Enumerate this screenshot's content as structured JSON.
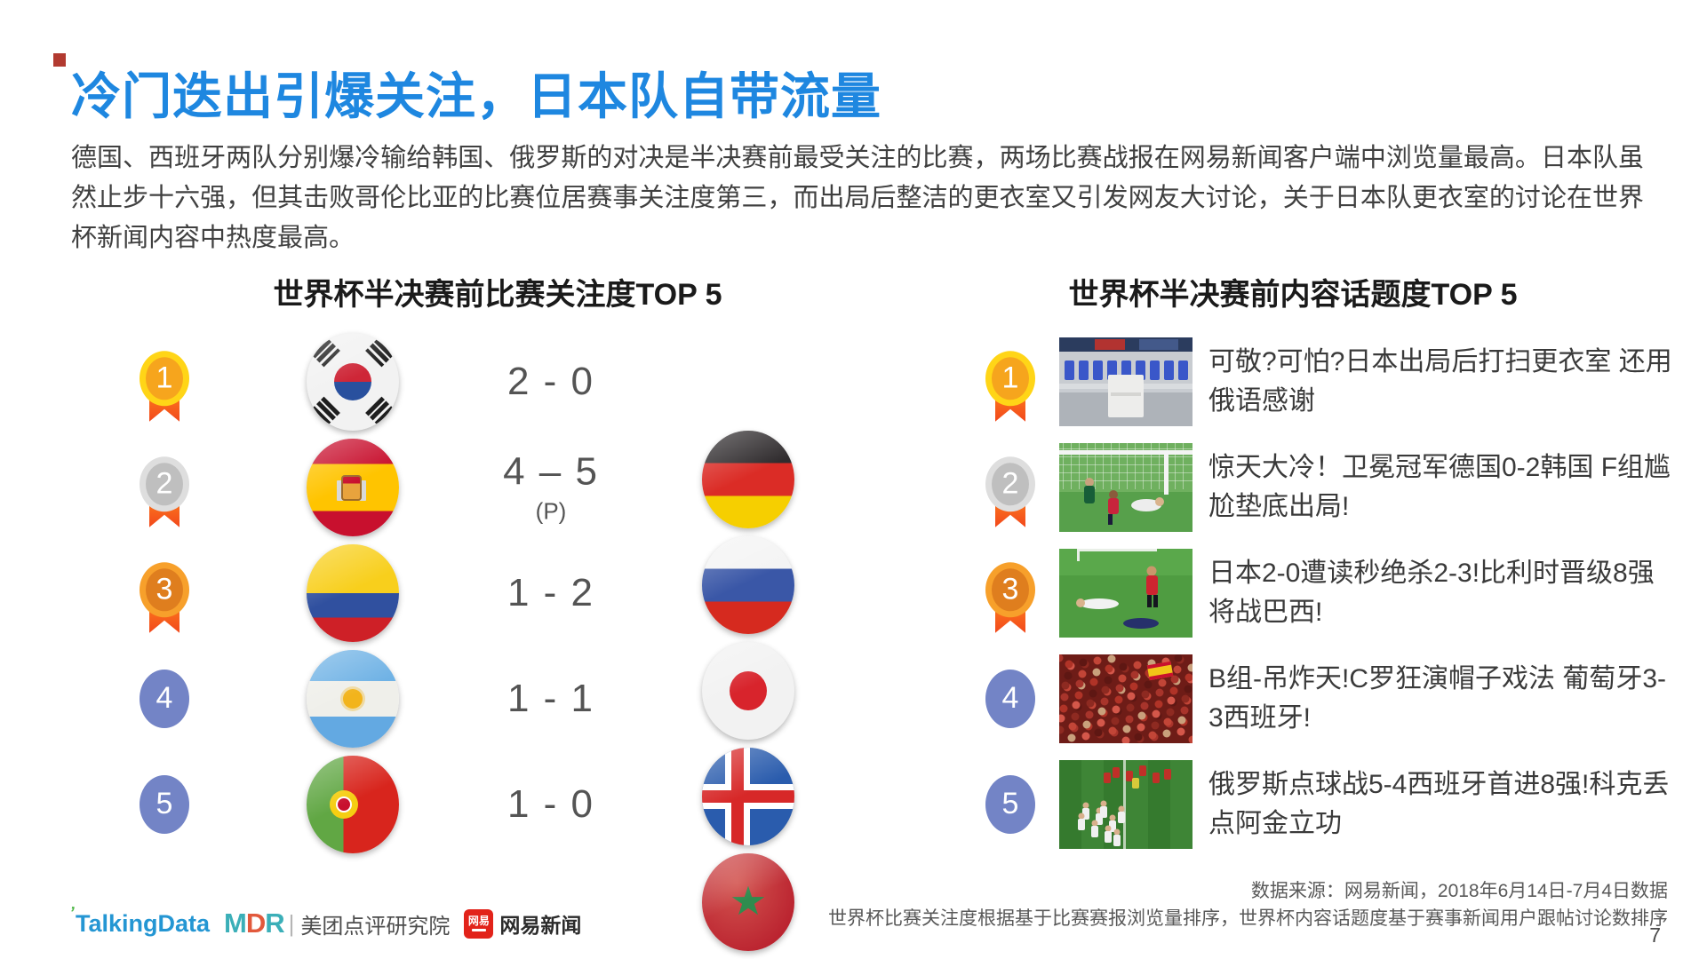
{
  "slide": {
    "title": "冷门迭出引爆关注，日本队自带流量",
    "body": "德国、西班牙两队分别爆冷输给韩国、俄罗斯的对决是半决赛前最受关注的比赛，两场比赛战报在网易新闻客户端中浏览量最高。日本队虽然止步十六强，但其击败哥伦比亚的比赛位居赛事关注度第三，而出局后整洁的更衣室又引发网友大讨论，关于日本队更衣室的讨论在世界杯新闻内容中热度最高。",
    "page_number": "7"
  },
  "matches_section": {
    "heading": "世界杯半决赛前比赛关注度TOP 5",
    "rows": [
      {
        "rank": "1",
        "medal": "gold",
        "team_left": "south-korea",
        "score": "2 - 0",
        "score_note": "",
        "team_right": "germany"
      },
      {
        "rank": "2",
        "medal": "silver",
        "team_left": "spain",
        "score": "4 – 5",
        "score_note": "(P)",
        "team_right": "russia"
      },
      {
        "rank": "3",
        "medal": "bronze",
        "team_left": "colombia",
        "score": "1 - 2",
        "score_note": "",
        "team_right": "japan"
      },
      {
        "rank": "4",
        "medal": "blue",
        "team_left": "argentina",
        "score": "1 - 1",
        "score_note": "",
        "team_right": "iceland"
      },
      {
        "rank": "5",
        "medal": "blue",
        "team_left": "portugal",
        "score": "1 - 0",
        "score_note": "",
        "team_right": "morocco"
      }
    ]
  },
  "topics_section": {
    "heading": "世界杯半决赛前内容话题度TOP 5",
    "rows": [
      {
        "rank": "1",
        "medal": "gold",
        "photo": "locker-room-photo",
        "title": "可敬?可怕?日本出局后打扫更衣室 还用俄语感谢"
      },
      {
        "rank": "2",
        "medal": "silver",
        "photo": "goal-upset-photo",
        "title": "惊天大冷！卫冕冠军德国0-2韩国 F组尴尬垫底出局!"
      },
      {
        "rank": "3",
        "medal": "bronze",
        "photo": "players-down-photo",
        "title": "日本2-0遭读秒绝杀2-3!比利时晋级8强将战巴西!"
      },
      {
        "rank": "4",
        "medal": "blue",
        "photo": "fans-crowd-photo",
        "title": "B组-吊炸天!C罗狂演帽子戏法 葡萄牙3-3西班牙!"
      },
      {
        "rank": "5",
        "medal": "blue",
        "photo": "celebration-photo",
        "title": "俄罗斯点球战5-4西班牙首进8强!科克丢点阿金立功"
      }
    ]
  },
  "footer": {
    "source_line1": "数据来源：网易新闻，2018年6月14日-7月4日数据",
    "source_line2": "世界杯比赛关注度根据基于比赛赛报浏览量排序，世界杯内容话题度基于赛事新闻用户跟帖讨论数排序",
    "logos": {
      "talkingdata": "TalkingData",
      "mdr_letters": [
        "M",
        "D",
        "R"
      ],
      "mdr_divider": "|",
      "mdr_text": "美团点评研究院",
      "netease_badge": "网易",
      "netease_text": "网易新闻"
    }
  },
  "colors": {
    "title_blue": "#1e87e0",
    "body_text": "#404040",
    "score_gray": "#545454",
    "medal_gold": "#ffd517",
    "medal_silver": "#dedede",
    "medal_bronze": "#f7a02b",
    "ribbon_orange": "#f2471b",
    "rank_blue": "#7384c6",
    "talkingdata_blue": "#2496d3",
    "mdr_teal": "#3bafb8",
    "mdr_orange": "#e2593c",
    "netease_red": "#e2231a"
  }
}
